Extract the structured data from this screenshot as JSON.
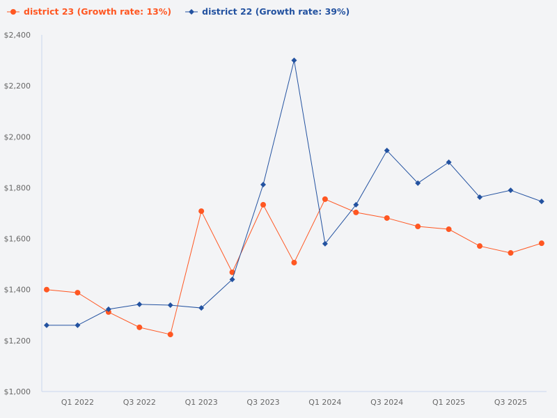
{
  "chart_data": {
    "type": "line",
    "title": "",
    "xlabel": "",
    "ylabel": "",
    "x": [
      "Q4 2021",
      "Q1 2022",
      "Q2 2022",
      "Q3 2022",
      "Q4 2022",
      "Q1 2023",
      "Q2 2023",
      "Q3 2023",
      "Q4 2023",
      "Q1 2024",
      "Q2 2024",
      "Q3 2024",
      "Q4 2024",
      "Q1 2025",
      "Q2 2025",
      "Q3 2025",
      "Q4 2025"
    ],
    "x_tick_labels": [
      "Q1 2022",
      "Q3 2022",
      "Q1 2023",
      "Q3 2023",
      "Q1 2024",
      "Q3 2024",
      "Q1 2025",
      "Q3 2025"
    ],
    "y_tick_labels": [
      "$1,000",
      "$1,200",
      "$1,400",
      "$1,600",
      "$1,800",
      "$2,000",
      "$2,200",
      "$2,400"
    ],
    "ylim": [
      1000,
      2400
    ],
    "grid": false,
    "legend_placement": "top-left",
    "series": [
      {
        "name": "district 23 (Growth rate: 13%)",
        "color": "#ff5722",
        "marker": "circle",
        "values": [
          1400,
          1388,
          1312,
          1252,
          1224,
          1708,
          1468,
          1733,
          1506,
          1755,
          1703,
          1681,
          1648,
          1637,
          1571,
          1544,
          1582
        ]
      },
      {
        "name": "district 22 (Growth rate: 39%)",
        "color": "#2352a0",
        "marker": "diamond",
        "values": [
          1260,
          1260,
          1323,
          1342,
          1339,
          1328,
          1440,
          1812,
          2300,
          1580,
          1733,
          1946,
          1818,
          1900,
          1763,
          1790,
          1746
        ]
      }
    ]
  }
}
